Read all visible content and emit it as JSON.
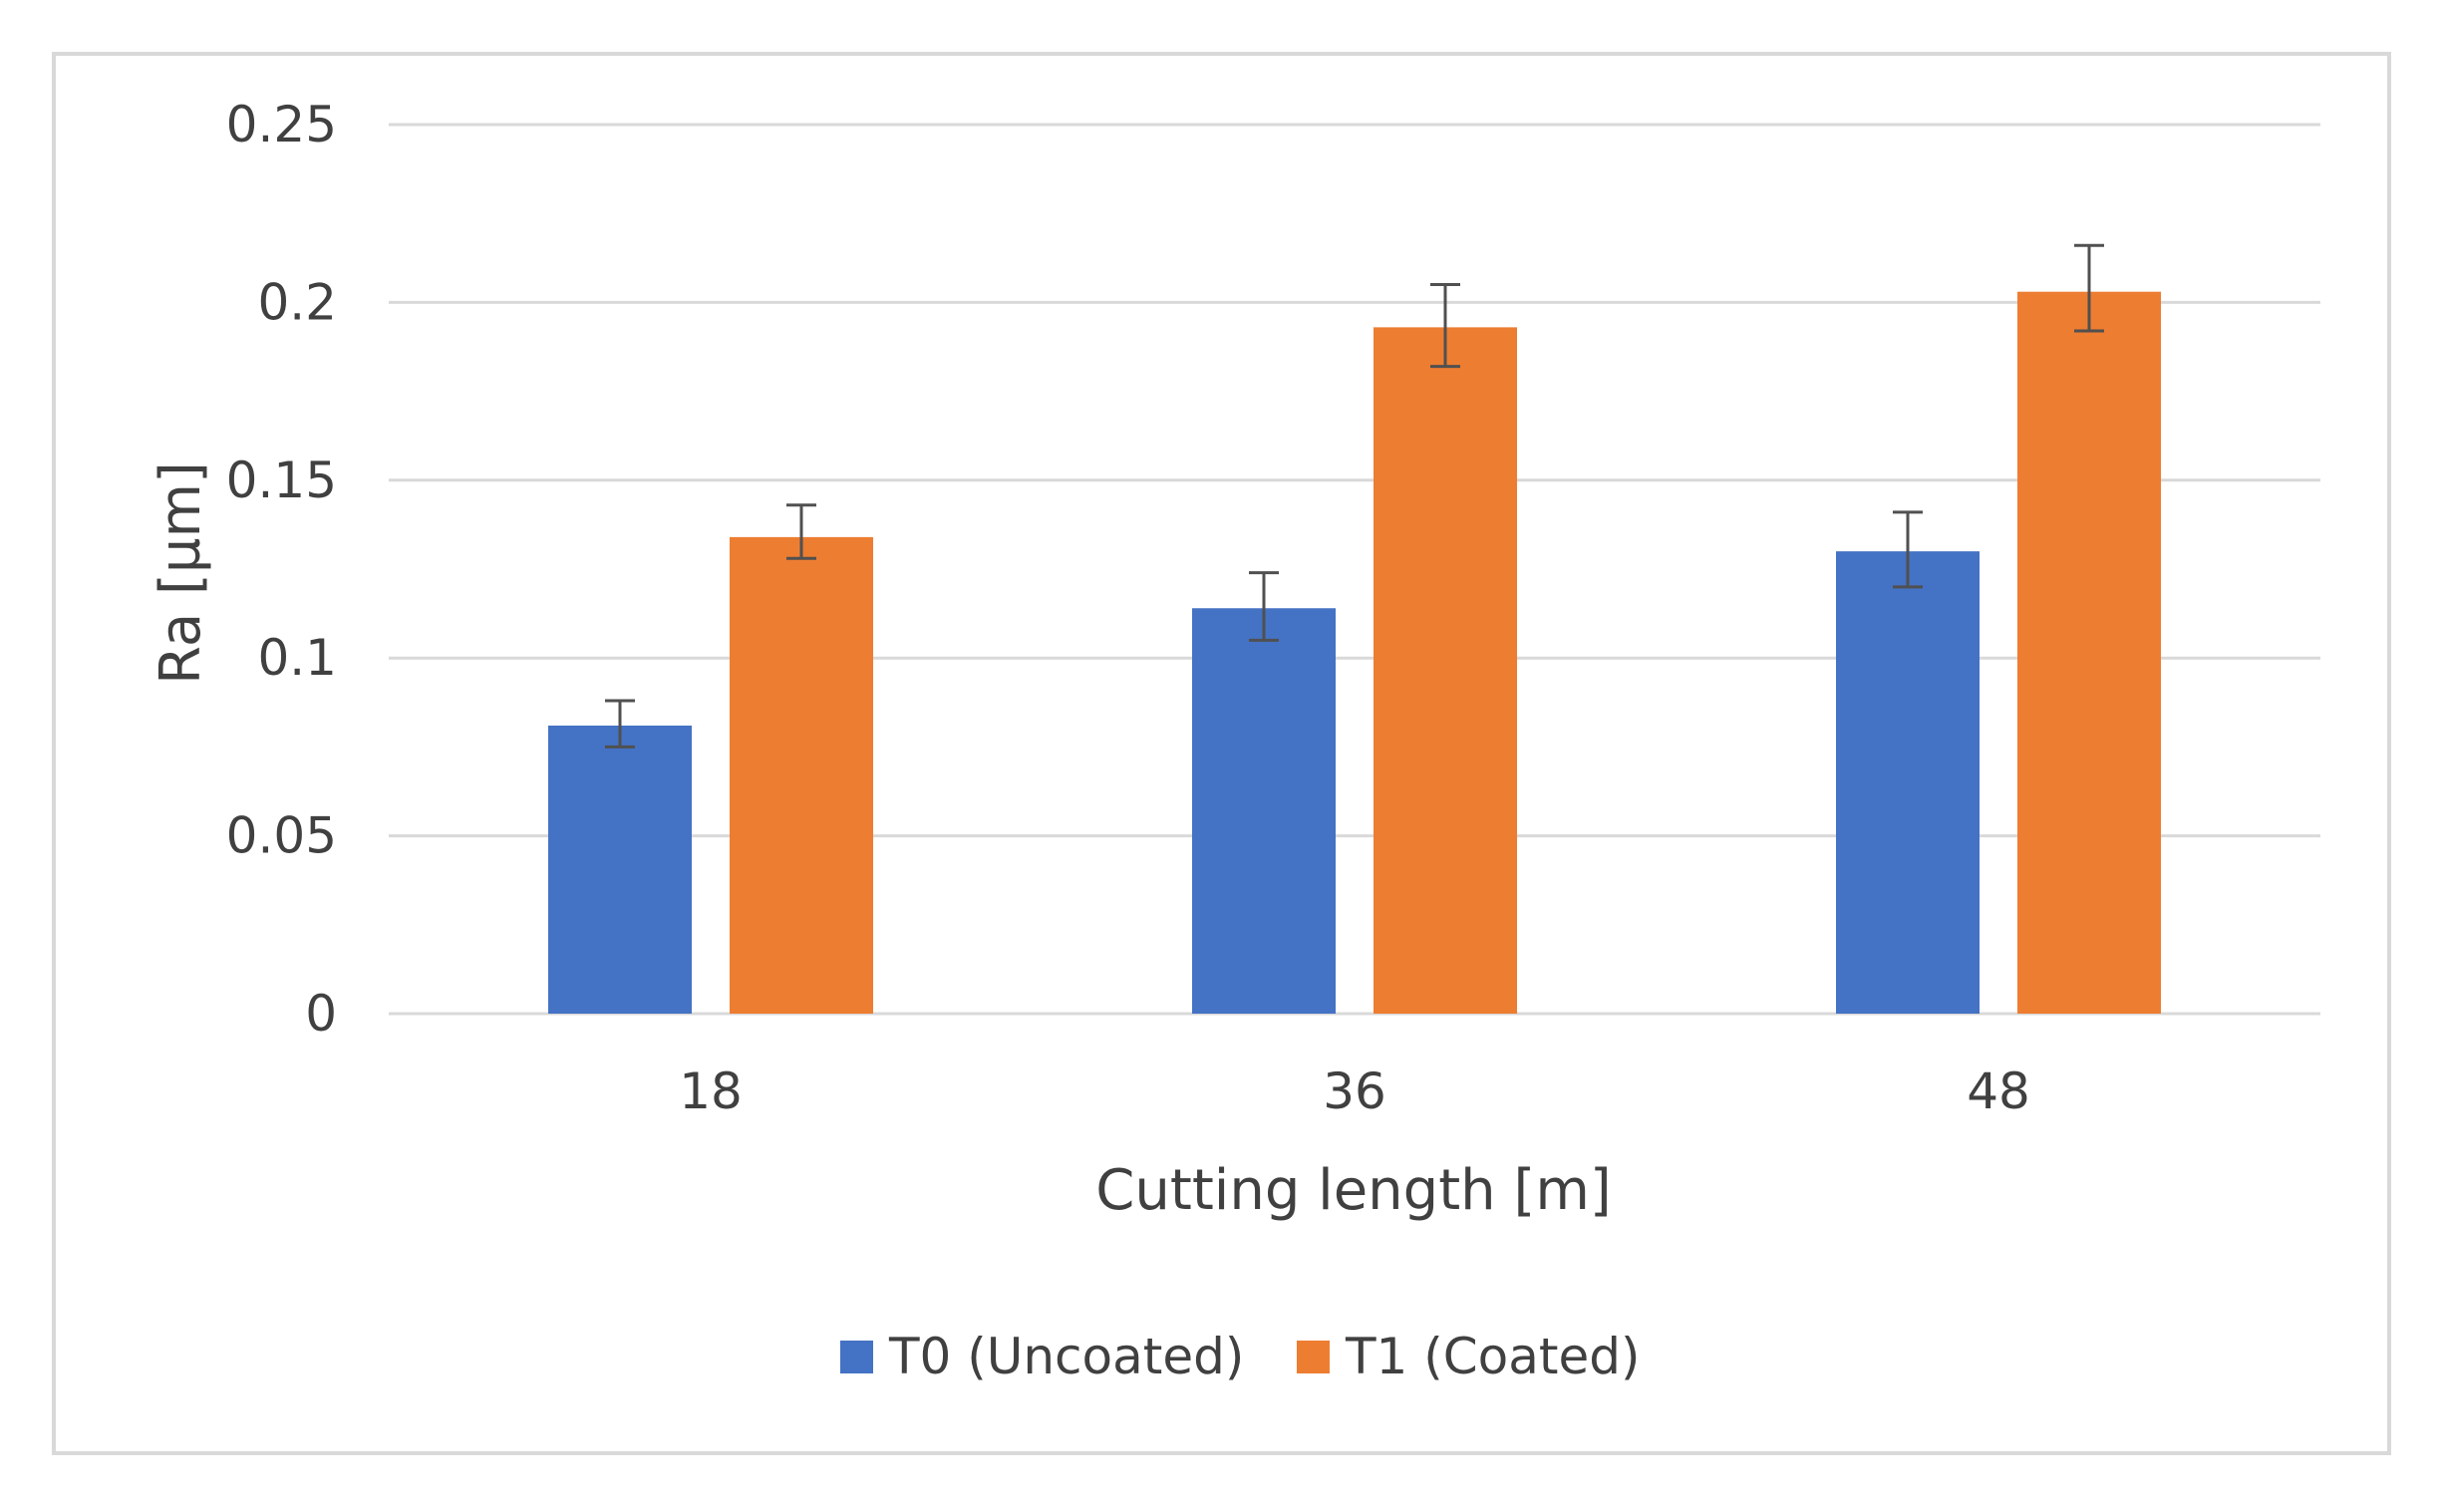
{
  "chart_data": {
    "type": "bar",
    "title": "",
    "xlabel": "Cutting length [m]",
    "ylabel": "Ra [µm]",
    "categories": [
      "18",
      "36",
      "48"
    ],
    "ylim": [
      0,
      0.25
    ],
    "yticks": [
      "0",
      "0.05",
      "0.1",
      "0.15",
      "0.2",
      "0.25"
    ],
    "ytick_values": [
      0,
      0.05,
      0.1,
      0.15,
      0.2,
      0.25
    ],
    "grid": true,
    "legend_position": "bottom-center",
    "series": [
      {
        "name": "T0 (Uncoated)",
        "color": "#4472c4",
        "values": [
          0.081,
          0.114,
          0.13
        ],
        "error_low": [
          0.075,
          0.105,
          0.12
        ],
        "error_high": [
          0.088,
          0.124,
          0.141
        ]
      },
      {
        "name": "T1 (Coated)",
        "color": "#ed7d31",
        "values": [
          0.134,
          0.193,
          0.203
        ],
        "error_low": [
          0.128,
          0.182,
          0.192
        ],
        "error_high": [
          0.143,
          0.205,
          0.216
        ]
      }
    ]
  }
}
